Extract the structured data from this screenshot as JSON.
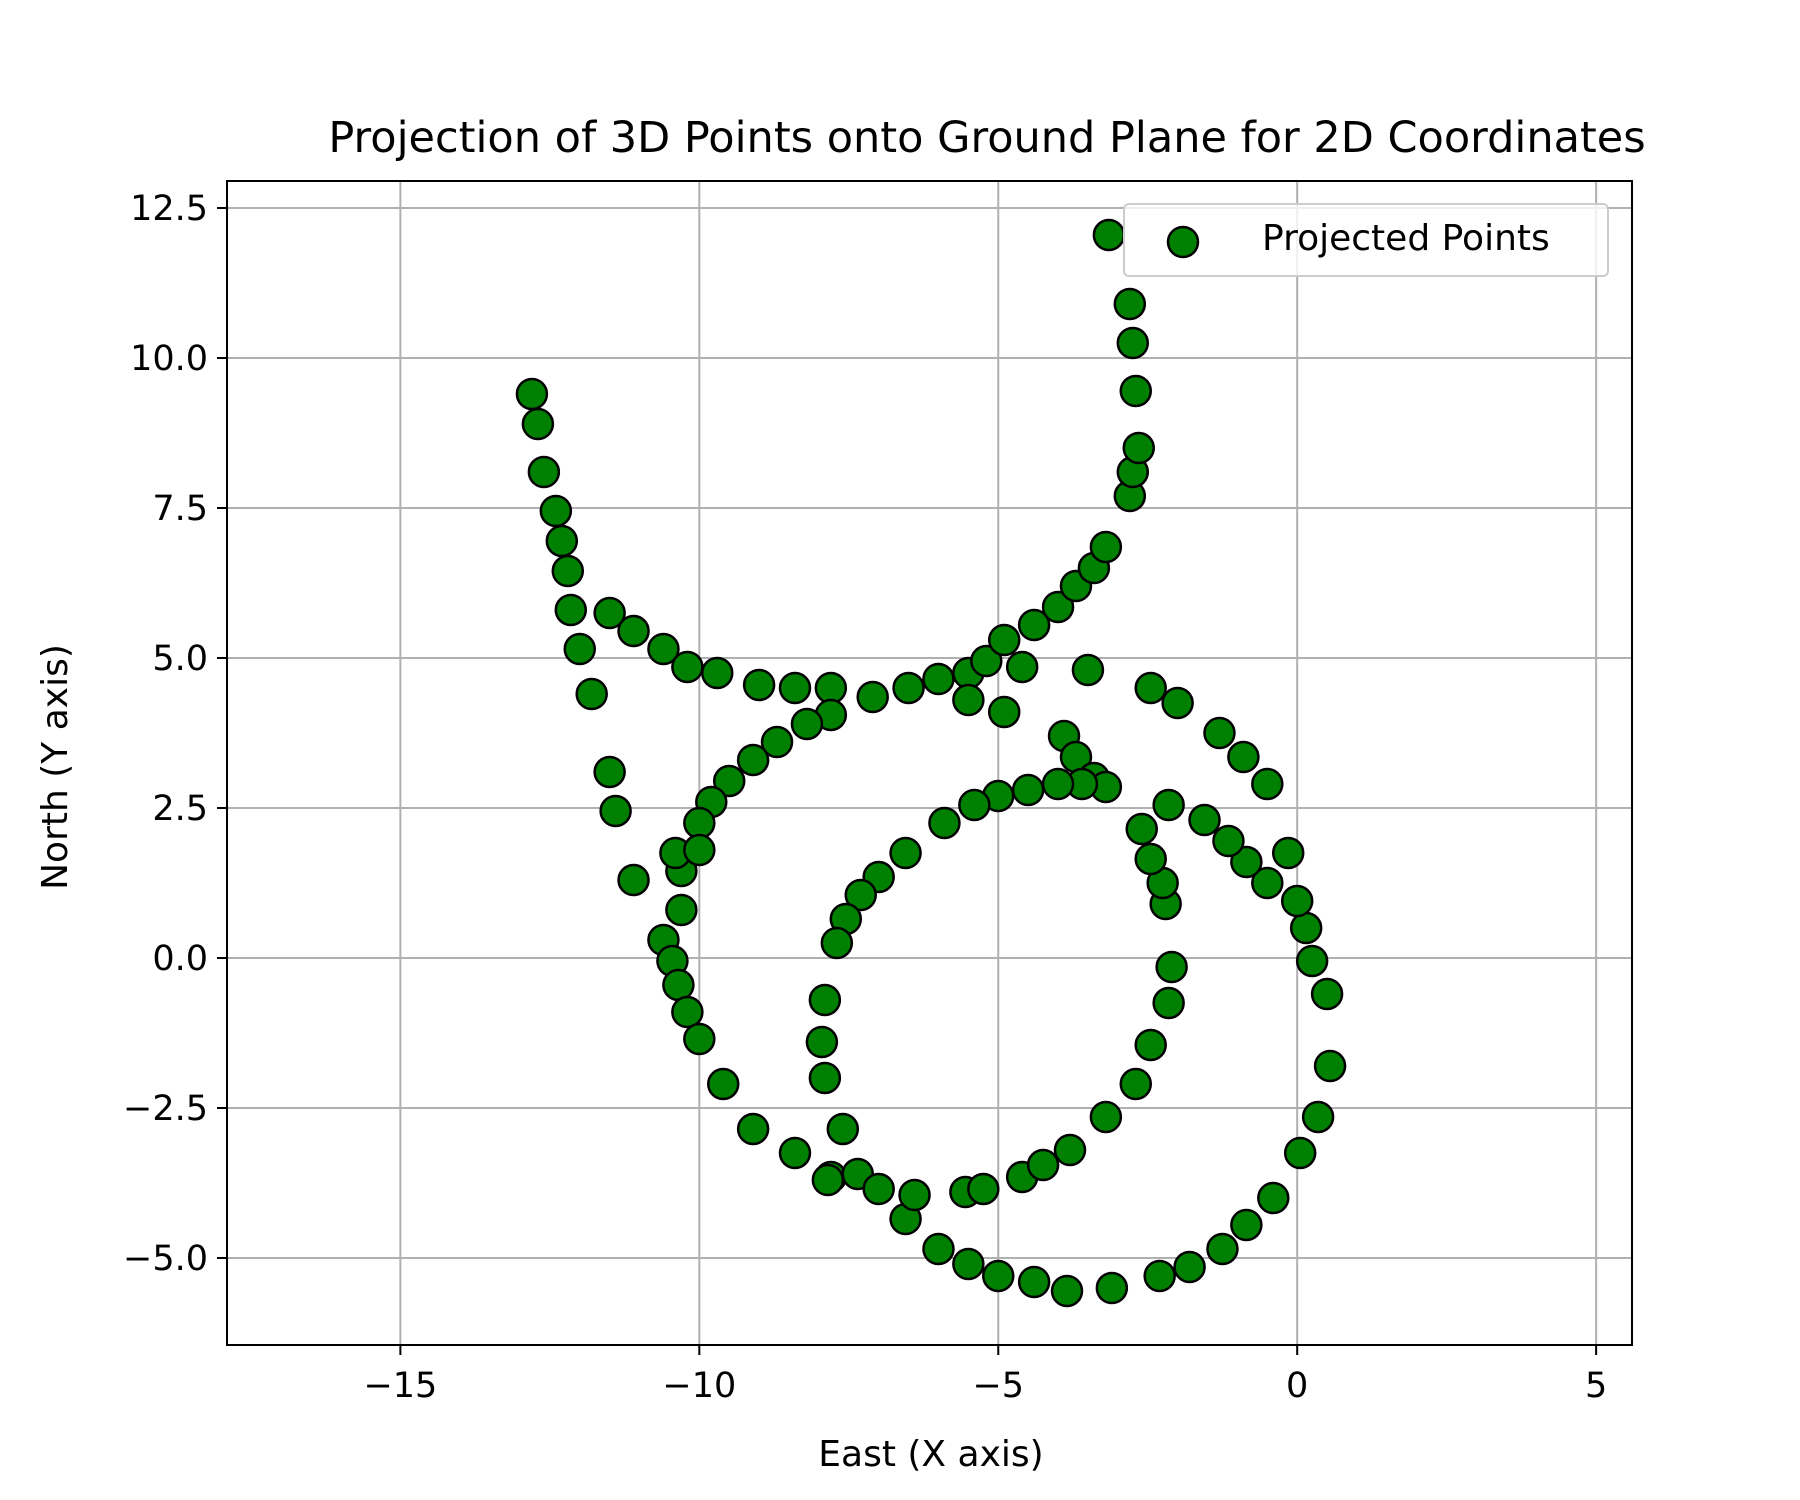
{
  "chart_data": {
    "type": "scatter",
    "title": "Projection of 3D Points onto Ground Plane for 2D Coordinates",
    "xlabel": "East (X axis)",
    "ylabel": "North (Y axis)",
    "xlim": [
      -17.9,
      5.6
    ],
    "ylim": [
      -6.45,
      12.95
    ],
    "xticks": [
      -15,
      -10,
      -5,
      0,
      5
    ],
    "xtick_labels": [
      "−15",
      "−10",
      "−5",
      "0",
      "5"
    ],
    "yticks": [
      -5.0,
      -2.5,
      0.0,
      2.5,
      5.0,
      7.5,
      10.0,
      12.5
    ],
    "ytick_labels": [
      "−5.0",
      "−2.5",
      "0.0",
      "2.5",
      "5.0",
      "7.5",
      "10.0",
      "12.5"
    ],
    "grid": true,
    "legend": {
      "position": "top-right",
      "entries": [
        "Projected Points"
      ]
    },
    "marker_color": "#008000",
    "marker_edge_color": "#000000",
    "series": [
      {
        "name": "Projected Points",
        "points": [
          [
            -12.8,
            9.4
          ],
          [
            -12.7,
            8.9
          ],
          [
            -12.6,
            8.1
          ],
          [
            -12.4,
            7.45
          ],
          [
            -12.3,
            6.95
          ],
          [
            -12.2,
            6.45
          ],
          [
            -12.15,
            5.8
          ],
          [
            -12.0,
            5.15
          ],
          [
            -11.8,
            4.4
          ],
          [
            -11.5,
            3.1
          ],
          [
            -11.4,
            2.45
          ],
          [
            -11.1,
            1.3
          ],
          [
            -11.5,
            5.75
          ],
          [
            -11.1,
            5.45
          ],
          [
            -10.6,
            5.15
          ],
          [
            -10.2,
            4.85
          ],
          [
            -9.7,
            4.75
          ],
          [
            -9.0,
            4.55
          ],
          [
            -8.4,
            4.5
          ],
          [
            -7.8,
            4.5
          ],
          [
            -7.1,
            4.35
          ],
          [
            -6.5,
            4.5
          ],
          [
            -6.0,
            4.65
          ],
          [
            -5.5,
            4.75
          ],
          [
            -5.2,
            4.95
          ],
          [
            -4.9,
            5.3
          ],
          [
            -4.4,
            5.55
          ],
          [
            -4.0,
            5.85
          ],
          [
            -3.7,
            6.2
          ],
          [
            -3.4,
            6.5
          ],
          [
            -3.2,
            6.85
          ],
          [
            -2.8,
            7.7
          ],
          [
            -2.75,
            8.1
          ],
          [
            -2.65,
            8.5
          ],
          [
            -2.7,
            9.45
          ],
          [
            -2.75,
            10.25
          ],
          [
            -2.8,
            10.9
          ],
          [
            -3.15,
            12.05
          ],
          [
            -4.6,
            4.85
          ],
          [
            -5.5,
            4.3
          ],
          [
            -4.9,
            4.1
          ],
          [
            -3.5,
            4.8
          ],
          [
            -7.8,
            4.05
          ],
          [
            -8.2,
            3.9
          ],
          [
            -8.7,
            3.6
          ],
          [
            -9.1,
            3.3
          ],
          [
            -9.5,
            2.95
          ],
          [
            -9.8,
            2.6
          ],
          [
            -10.0,
            2.25
          ],
          [
            -10.3,
            1.45
          ],
          [
            -10.4,
            1.75
          ],
          [
            -10.0,
            1.8
          ],
          [
            -10.3,
            0.8
          ],
          [
            -10.6,
            0.3
          ],
          [
            -10.45,
            -0.05
          ],
          [
            -10.35,
            -0.45
          ],
          [
            -10.2,
            -0.9
          ],
          [
            -10.0,
            -1.35
          ],
          [
            -9.6,
            -2.1
          ],
          [
            -9.1,
            -2.85
          ],
          [
            -8.4,
            -3.25
          ],
          [
            -7.8,
            -3.65
          ],
          [
            -7.35,
            -3.6
          ],
          [
            -7.0,
            -3.85
          ],
          [
            -6.55,
            -4.35
          ],
          [
            -6.4,
            -3.95
          ],
          [
            -6.0,
            -4.85
          ],
          [
            -5.5,
            -5.1
          ],
          [
            -5.0,
            -5.3
          ],
          [
            -4.4,
            -5.4
          ],
          [
            -3.85,
            -5.55
          ],
          [
            -3.1,
            -5.5
          ],
          [
            -2.3,
            -5.3
          ],
          [
            -1.8,
            -5.15
          ],
          [
            -1.25,
            -4.85
          ],
          [
            -0.85,
            -4.45
          ],
          [
            -0.4,
            -4.0
          ],
          [
            0.05,
            -3.25
          ],
          [
            0.35,
            -2.65
          ],
          [
            0.55,
            -1.8
          ],
          [
            0.5,
            -0.6
          ],
          [
            0.25,
            -0.05
          ],
          [
            0.15,
            0.5
          ],
          [
            0.0,
            0.95
          ],
          [
            -0.15,
            1.75
          ],
          [
            -0.5,
            1.25
          ],
          [
            -0.85,
            1.6
          ],
          [
            -1.15,
            1.95
          ],
          [
            -1.55,
            2.3
          ],
          [
            -0.5,
            2.9
          ],
          [
            -0.9,
            3.35
          ],
          [
            -1.3,
            3.75
          ],
          [
            -2.0,
            4.25
          ],
          [
            -2.45,
            4.5
          ],
          [
            -3.9,
            3.7
          ],
          [
            -3.7,
            3.35
          ],
          [
            -3.4,
            3.0
          ],
          [
            -3.2,
            2.85
          ],
          [
            -3.6,
            2.9
          ],
          [
            -4.0,
            2.9
          ],
          [
            -4.5,
            2.8
          ],
          [
            -5.0,
            2.7
          ],
          [
            -5.4,
            2.55
          ],
          [
            -5.9,
            2.25
          ],
          [
            -6.55,
            1.75
          ],
          [
            -7.0,
            1.35
          ],
          [
            -7.3,
            1.05
          ],
          [
            -7.55,
            0.65
          ],
          [
            -7.7,
            0.25
          ],
          [
            -7.9,
            -0.7
          ],
          [
            -7.95,
            -1.4
          ],
          [
            -7.9,
            -2.0
          ],
          [
            -7.6,
            -2.85
          ],
          [
            -7.85,
            -3.7
          ],
          [
            -5.55,
            -3.9
          ],
          [
            -5.25,
            -3.85
          ],
          [
            -4.6,
            -3.65
          ],
          [
            -4.25,
            -3.45
          ],
          [
            -3.8,
            -3.2
          ],
          [
            -3.2,
            -2.65
          ],
          [
            -2.7,
            -2.1
          ],
          [
            -2.45,
            -1.45
          ],
          [
            -2.15,
            -0.75
          ],
          [
            -2.1,
            -0.15
          ],
          [
            -2.2,
            0.9
          ],
          [
            -2.25,
            1.25
          ],
          [
            -2.45,
            1.65
          ],
          [
            -2.6,
            2.15
          ],
          [
            -2.15,
            2.55
          ]
        ]
      }
    ]
  }
}
